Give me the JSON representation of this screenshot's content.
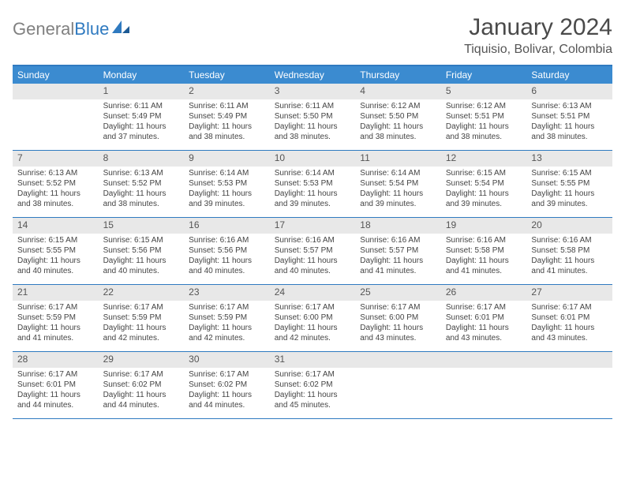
{
  "logo": {
    "part1": "General",
    "part2": "Blue"
  },
  "title": "January 2024",
  "location": "Tiquisio, Bolivar, Colombia",
  "colors": {
    "header_bar": "#3b8bd0",
    "border": "#2f7ac0",
    "daynum_bg": "#e8e8e8",
    "text": "#444444",
    "title_text": "#4a4a4a"
  },
  "weekdays": [
    "Sunday",
    "Monday",
    "Tuesday",
    "Wednesday",
    "Thursday",
    "Friday",
    "Saturday"
  ],
  "weeks": [
    [
      {
        "n": "",
        "lines": [
          "",
          "",
          "",
          ""
        ]
      },
      {
        "n": "1",
        "lines": [
          "Sunrise: 6:11 AM",
          "Sunset: 5:49 PM",
          "Daylight: 11 hours",
          "and 37 minutes."
        ]
      },
      {
        "n": "2",
        "lines": [
          "Sunrise: 6:11 AM",
          "Sunset: 5:49 PM",
          "Daylight: 11 hours",
          "and 38 minutes."
        ]
      },
      {
        "n": "3",
        "lines": [
          "Sunrise: 6:11 AM",
          "Sunset: 5:50 PM",
          "Daylight: 11 hours",
          "and 38 minutes."
        ]
      },
      {
        "n": "4",
        "lines": [
          "Sunrise: 6:12 AM",
          "Sunset: 5:50 PM",
          "Daylight: 11 hours",
          "and 38 minutes."
        ]
      },
      {
        "n": "5",
        "lines": [
          "Sunrise: 6:12 AM",
          "Sunset: 5:51 PM",
          "Daylight: 11 hours",
          "and 38 minutes."
        ]
      },
      {
        "n": "6",
        "lines": [
          "Sunrise: 6:13 AM",
          "Sunset: 5:51 PM",
          "Daylight: 11 hours",
          "and 38 minutes."
        ]
      }
    ],
    [
      {
        "n": "7",
        "lines": [
          "Sunrise: 6:13 AM",
          "Sunset: 5:52 PM",
          "Daylight: 11 hours",
          "and 38 minutes."
        ]
      },
      {
        "n": "8",
        "lines": [
          "Sunrise: 6:13 AM",
          "Sunset: 5:52 PM",
          "Daylight: 11 hours",
          "and 38 minutes."
        ]
      },
      {
        "n": "9",
        "lines": [
          "Sunrise: 6:14 AM",
          "Sunset: 5:53 PM",
          "Daylight: 11 hours",
          "and 39 minutes."
        ]
      },
      {
        "n": "10",
        "lines": [
          "Sunrise: 6:14 AM",
          "Sunset: 5:53 PM",
          "Daylight: 11 hours",
          "and 39 minutes."
        ]
      },
      {
        "n": "11",
        "lines": [
          "Sunrise: 6:14 AM",
          "Sunset: 5:54 PM",
          "Daylight: 11 hours",
          "and 39 minutes."
        ]
      },
      {
        "n": "12",
        "lines": [
          "Sunrise: 6:15 AM",
          "Sunset: 5:54 PM",
          "Daylight: 11 hours",
          "and 39 minutes."
        ]
      },
      {
        "n": "13",
        "lines": [
          "Sunrise: 6:15 AM",
          "Sunset: 5:55 PM",
          "Daylight: 11 hours",
          "and 39 minutes."
        ]
      }
    ],
    [
      {
        "n": "14",
        "lines": [
          "Sunrise: 6:15 AM",
          "Sunset: 5:55 PM",
          "Daylight: 11 hours",
          "and 40 minutes."
        ]
      },
      {
        "n": "15",
        "lines": [
          "Sunrise: 6:15 AM",
          "Sunset: 5:56 PM",
          "Daylight: 11 hours",
          "and 40 minutes."
        ]
      },
      {
        "n": "16",
        "lines": [
          "Sunrise: 6:16 AM",
          "Sunset: 5:56 PM",
          "Daylight: 11 hours",
          "and 40 minutes."
        ]
      },
      {
        "n": "17",
        "lines": [
          "Sunrise: 6:16 AM",
          "Sunset: 5:57 PM",
          "Daylight: 11 hours",
          "and 40 minutes."
        ]
      },
      {
        "n": "18",
        "lines": [
          "Sunrise: 6:16 AM",
          "Sunset: 5:57 PM",
          "Daylight: 11 hours",
          "and 41 minutes."
        ]
      },
      {
        "n": "19",
        "lines": [
          "Sunrise: 6:16 AM",
          "Sunset: 5:58 PM",
          "Daylight: 11 hours",
          "and 41 minutes."
        ]
      },
      {
        "n": "20",
        "lines": [
          "Sunrise: 6:16 AM",
          "Sunset: 5:58 PM",
          "Daylight: 11 hours",
          "and 41 minutes."
        ]
      }
    ],
    [
      {
        "n": "21",
        "lines": [
          "Sunrise: 6:17 AM",
          "Sunset: 5:59 PM",
          "Daylight: 11 hours",
          "and 41 minutes."
        ]
      },
      {
        "n": "22",
        "lines": [
          "Sunrise: 6:17 AM",
          "Sunset: 5:59 PM",
          "Daylight: 11 hours",
          "and 42 minutes."
        ]
      },
      {
        "n": "23",
        "lines": [
          "Sunrise: 6:17 AM",
          "Sunset: 5:59 PM",
          "Daylight: 11 hours",
          "and 42 minutes."
        ]
      },
      {
        "n": "24",
        "lines": [
          "Sunrise: 6:17 AM",
          "Sunset: 6:00 PM",
          "Daylight: 11 hours",
          "and 42 minutes."
        ]
      },
      {
        "n": "25",
        "lines": [
          "Sunrise: 6:17 AM",
          "Sunset: 6:00 PM",
          "Daylight: 11 hours",
          "and 43 minutes."
        ]
      },
      {
        "n": "26",
        "lines": [
          "Sunrise: 6:17 AM",
          "Sunset: 6:01 PM",
          "Daylight: 11 hours",
          "and 43 minutes."
        ]
      },
      {
        "n": "27",
        "lines": [
          "Sunrise: 6:17 AM",
          "Sunset: 6:01 PM",
          "Daylight: 11 hours",
          "and 43 minutes."
        ]
      }
    ],
    [
      {
        "n": "28",
        "lines": [
          "Sunrise: 6:17 AM",
          "Sunset: 6:01 PM",
          "Daylight: 11 hours",
          "and 44 minutes."
        ]
      },
      {
        "n": "29",
        "lines": [
          "Sunrise: 6:17 AM",
          "Sunset: 6:02 PM",
          "Daylight: 11 hours",
          "and 44 minutes."
        ]
      },
      {
        "n": "30",
        "lines": [
          "Sunrise: 6:17 AM",
          "Sunset: 6:02 PM",
          "Daylight: 11 hours",
          "and 44 minutes."
        ]
      },
      {
        "n": "31",
        "lines": [
          "Sunrise: 6:17 AM",
          "Sunset: 6:02 PM",
          "Daylight: 11 hours",
          "and 45 minutes."
        ]
      },
      {
        "n": "",
        "lines": [
          "",
          "",
          "",
          ""
        ]
      },
      {
        "n": "",
        "lines": [
          "",
          "",
          "",
          ""
        ]
      },
      {
        "n": "",
        "lines": [
          "",
          "",
          "",
          ""
        ]
      }
    ]
  ]
}
